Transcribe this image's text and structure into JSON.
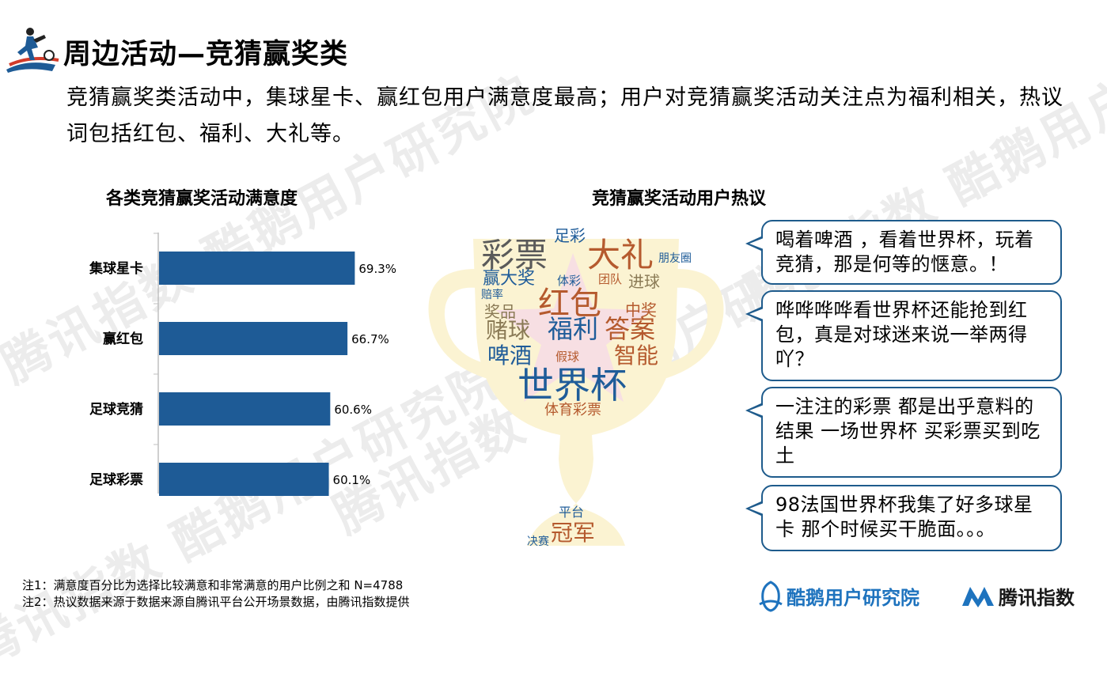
{
  "header": {
    "title": "周边活动—竞猜赢奖类",
    "summary": "竞猜赢奖类活动中，集球星卡、赢红包用户满意度最高；用户对竞猜赢奖活动关注点为福利相关，热议词包括红包、福利、大礼等。"
  },
  "chart_data": {
    "type": "bar",
    "orientation": "horizontal",
    "title": "各类竞猜赢奖活动满意度",
    "categories": [
      "集球星卡",
      "赢红包",
      "足球竞猜",
      "足球彩票"
    ],
    "values": [
      69.3,
      66.7,
      60.6,
      60.1
    ],
    "value_labels": [
      "69.3%",
      "66.7%",
      "60.6%",
      "60.1%"
    ],
    "unit": "%",
    "bar_color": "#1e5b96",
    "xlim": [
      0,
      100
    ],
    "grid": false,
    "legend": "none"
  },
  "word_cloud": {
    "title": "竞猜赢奖活动用户热议",
    "shape": "trophy",
    "words": [
      {
        "text": "足彩",
        "color": "#1f5c99",
        "size": "small"
      },
      {
        "text": "彩票",
        "color": "#5a5a5a",
        "size": "large"
      },
      {
        "text": "大礼",
        "color": "#b55a2e",
        "size": "large"
      },
      {
        "text": "朋友圈",
        "color": "#1f5c99",
        "size": "tiny"
      },
      {
        "text": "赢大奖",
        "color": "#1f5c99",
        "size": "small"
      },
      {
        "text": "体彩",
        "color": "#1f5c99",
        "size": "tiny"
      },
      {
        "text": "团队",
        "color": "#b55a2e",
        "size": "tiny"
      },
      {
        "text": "进球",
        "color": "#8a7a55",
        "size": "small"
      },
      {
        "text": "赔率",
        "color": "#1f5c99",
        "size": "tiny"
      },
      {
        "text": "红包",
        "color": "#b55a2e",
        "size": "large"
      },
      {
        "text": "中奖",
        "color": "#b55a2e",
        "size": "small"
      },
      {
        "text": "奖品",
        "color": "#8a7a55",
        "size": "small"
      },
      {
        "text": "赌球",
        "color": "#8a7a55",
        "size": "medium"
      },
      {
        "text": "福利",
        "color": "#1f5c99",
        "size": "medium"
      },
      {
        "text": "答案",
        "color": "#b55a2e",
        "size": "medium"
      },
      {
        "text": "啤酒",
        "color": "#1f5c99",
        "size": "medium"
      },
      {
        "text": "假球",
        "color": "#b55a2e",
        "size": "tiny"
      },
      {
        "text": "智能",
        "color": "#b55a2e",
        "size": "medium"
      },
      {
        "text": "世界杯",
        "color": "#1f5c99",
        "size": "xlarge"
      },
      {
        "text": "体育彩票",
        "color": "#b55a2e",
        "size": "small"
      },
      {
        "text": "平台",
        "color": "#1f5c99",
        "size": "tiny"
      },
      {
        "text": "决赛",
        "color": "#1f5c99",
        "size": "tiny"
      },
      {
        "text": "冠军",
        "color": "#b55a2e",
        "size": "medium"
      }
    ]
  },
  "comments": [
    "喝着啤酒 ，看着世界杯，玩着竞猜，那是何等的惬意。！",
    "哗哗哗哗看世界杯还能抢到红包，真是对球迷来说一举两得吖？",
    "一注注的彩票 都是出乎意料的结果 一场世界杯 买彩票买到吃土",
    "98法国世界杯我集了好多球星卡  那个时候买干脆面。。。"
  ],
  "notes": {
    "note1": "注1：满意度百分比为选择比较满意和非常满意的用户比例之和 N=4788",
    "note2": "注2：热议数据来源于数据来源自腾讯平台公开场景数据，由腾讯指数提供"
  },
  "footer": {
    "brand1": "酷鹅用户研究院",
    "brand2": "腾讯指数"
  },
  "watermark": {
    "text": "腾讯指数 酷鹅用户研究院"
  },
  "colors": {
    "accent": "#1e5b96",
    "bubble_border": "#1e5b8c",
    "trophy": "#fbf3d2",
    "star": "#f7dfe3"
  }
}
